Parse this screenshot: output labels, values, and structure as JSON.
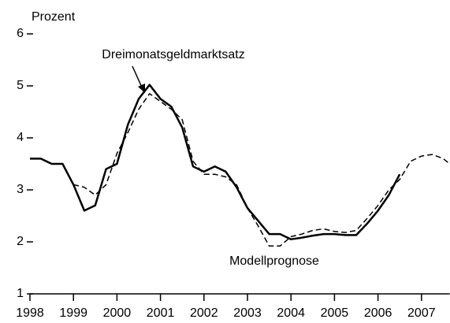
{
  "chart_data": {
    "type": "line",
    "ylabel": "Prozent",
    "xlim": [
      1998,
      2007.65
    ],
    "ylim": [
      1,
      6
    ],
    "xticks": [
      1998,
      1999,
      2000,
      2001,
      2002,
      2003,
      2004,
      2005,
      2006,
      2007
    ],
    "yticks": [
      1,
      2,
      3,
      4,
      5,
      6
    ],
    "series": [
      {
        "name": "Dreimonatsgeldmarktsatz",
        "color": "#000000",
        "dash": false,
        "x": [
          1998.0,
          1998.25,
          1998.5,
          1998.75,
          1999.0,
          1999.25,
          1999.5,
          1999.75,
          2000.0,
          2000.25,
          2000.5,
          2000.75,
          2001.0,
          2001.25,
          2001.5,
          2001.75,
          2002.0,
          2002.25,
          2002.5,
          2002.75,
          2003.0,
          2003.25,
          2003.5,
          2003.75,
          2004.0,
          2004.25,
          2004.5,
          2004.75,
          2005.0,
          2005.25,
          2005.5,
          2005.75,
          2006.0,
          2006.25,
          2006.5
        ],
        "values": [
          3.6,
          3.6,
          3.5,
          3.5,
          3.1,
          2.6,
          2.7,
          3.4,
          3.5,
          4.25,
          4.75,
          5.02,
          4.75,
          4.6,
          4.2,
          3.45,
          3.35,
          3.45,
          3.35,
          3.05,
          2.65,
          2.4,
          2.15,
          2.15,
          2.05,
          2.08,
          2.12,
          2.15,
          2.15,
          2.13,
          2.13,
          2.35,
          2.6,
          2.9,
          3.3
        ]
      },
      {
        "name": "Modellprognose",
        "color": "#000000",
        "dash": true,
        "x": [
          1999.0,
          1999.25,
          1999.5,
          1999.75,
          2000.0,
          2000.25,
          2000.5,
          2000.75,
          2001.0,
          2001.25,
          2001.5,
          2001.75,
          2002.0,
          2002.25,
          2002.5,
          2002.75,
          2003.0,
          2003.25,
          2003.5,
          2003.75,
          2004.0,
          2004.25,
          2004.5,
          2004.75,
          2005.0,
          2005.25,
          2005.5,
          2005.75,
          2006.0,
          2006.25,
          2006.5,
          2006.75,
          2007.0,
          2007.25,
          2007.5,
          2007.65
        ],
        "values": [
          3.1,
          3.05,
          2.9,
          3.1,
          3.7,
          4.1,
          4.55,
          4.85,
          4.7,
          4.55,
          4.35,
          3.55,
          3.3,
          3.3,
          3.25,
          3.1,
          2.65,
          2.3,
          1.92,
          1.92,
          2.1,
          2.15,
          2.22,
          2.25,
          2.2,
          2.18,
          2.22,
          2.45,
          2.7,
          3.0,
          3.2,
          3.55,
          3.65,
          3.68,
          3.6,
          3.5
        ]
      }
    ]
  }
}
